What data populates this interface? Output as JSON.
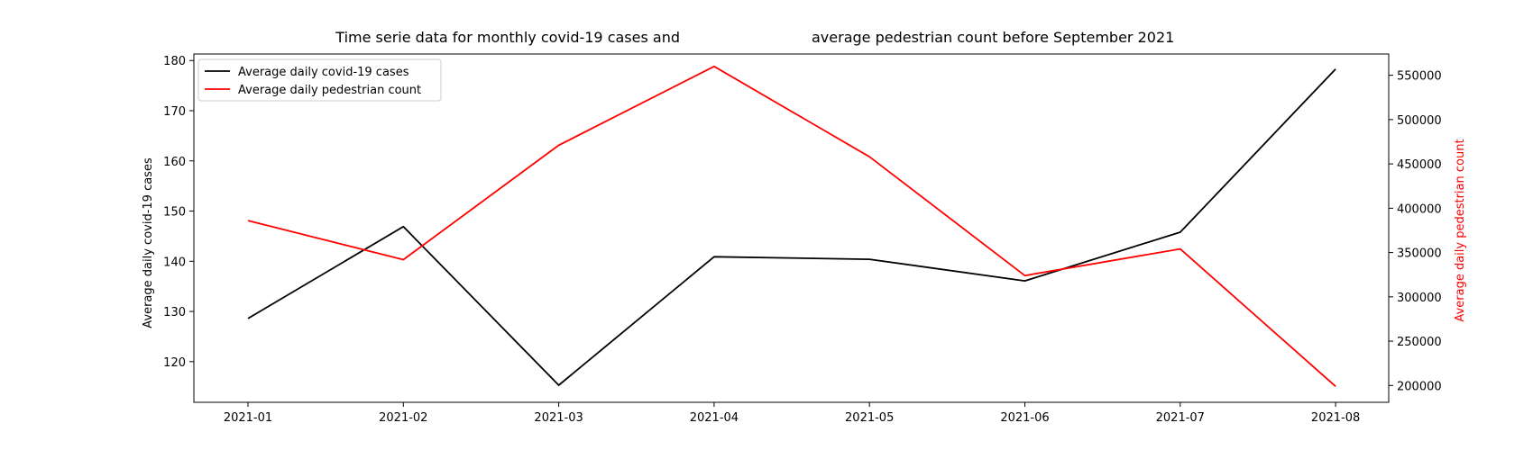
{
  "chart_data": {
    "type": "line",
    "title_part1": "Time serie data for monthly covid-19 cases and",
    "title_part2": "average pedestrian count before September 2021",
    "x": [
      "2021-01",
      "2021-02",
      "2021-03",
      "2021-04",
      "2021-05",
      "2021-06",
      "2021-07",
      "2021-08"
    ],
    "xlabel": "",
    "grid": false,
    "legend_position": "top-left",
    "series": [
      {
        "name": "Average daily covid-19 cases",
        "axis": "left",
        "color": "#000000",
        "values": [
          128.6,
          146.9,
          115.3,
          140.9,
          140.4,
          136.1,
          145.8,
          178.3
        ]
      },
      {
        "name": "Average daily pedestrian count",
        "axis": "right",
        "color": "#ff0000",
        "values": [
          386000,
          342000,
          471000,
          560000,
          458000,
          324000,
          354000,
          199000
        ]
      }
    ],
    "y_left": {
      "label": "Average daily covid-19 cases",
      "ticks": [
        120,
        130,
        140,
        150,
        160,
        170,
        180
      ],
      "range": [
        111.9,
        181.3
      ]
    },
    "y_right": {
      "label": "Average daily pedestrian count",
      "ticks": [
        200000,
        250000,
        300000,
        350000,
        400000,
        450000,
        500000,
        550000
      ],
      "range": [
        181000,
        574000
      ],
      "color": "#ff0000"
    }
  }
}
